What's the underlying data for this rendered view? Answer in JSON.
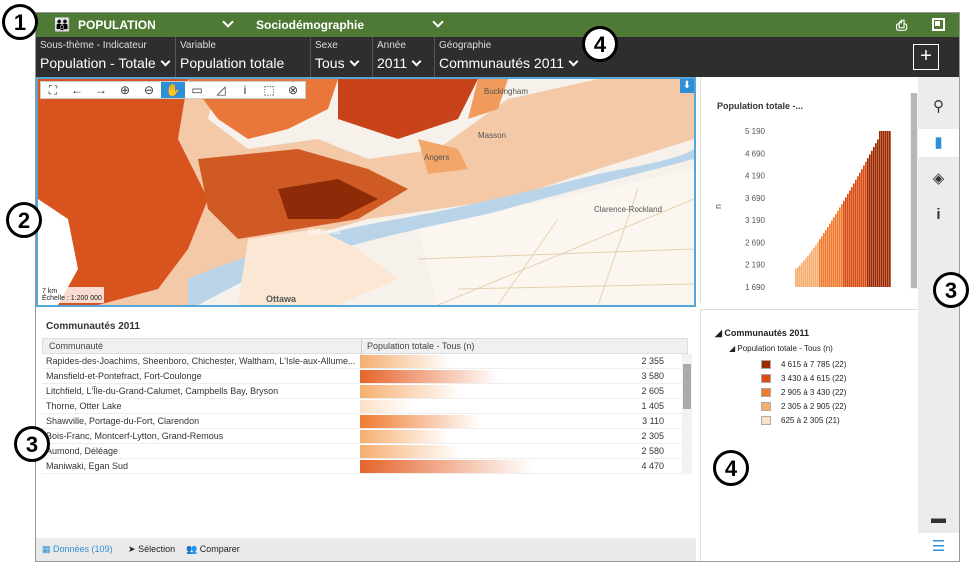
{
  "topbar": {
    "theme_label": "POPULATION",
    "sub_label": "Sociodémographie"
  },
  "filters": [
    {
      "label": "Sous-thème - Indicateur",
      "value": "Population - Totale"
    },
    {
      "label": "Variable",
      "value": "Population totale"
    },
    {
      "label": "Sexe",
      "value": "Tous"
    },
    {
      "label": "Année",
      "value": "2011"
    },
    {
      "label": "Géographie",
      "value": "Communautés 2011"
    }
  ],
  "map": {
    "scale_km": "7 km",
    "scale_ratio": "Échelle : 1:200 000",
    "labels": [
      "Ottawa",
      "Gatineau",
      "Clarence-Rockland",
      "Buckingham",
      "Masson",
      "Angers"
    ]
  },
  "table": {
    "title": "Communautés 2011",
    "col_community": "Communauté",
    "col_value": "Population totale - Tous (n)",
    "rows": [
      {
        "name": "Rapides-des-Joachims, Sheenboro, Chichester, Waltham, L'Isle-aux-Allume...",
        "value": "2 355",
        "num": 2355
      },
      {
        "name": "Mansfield-et-Pontefract, Fort-Coulonge",
        "value": "3 580",
        "num": 3580
      },
      {
        "name": "Litchfield, L'Île-du-Grand-Calumet, Campbells Bay, Bryson",
        "value": "2 605",
        "num": 2605
      },
      {
        "name": "Thorne, Otter Lake",
        "value": "1 405",
        "num": 1405
      },
      {
        "name": "Shawville, Portage-du-Fort, Clarendon",
        "value": "3 110",
        "num": 3110
      },
      {
        "name": "Bois-Franc, Montcerf-Lytton, Grand-Remous",
        "value": "2 305",
        "num": 2305
      },
      {
        "name": "Aumond, Déléage",
        "value": "2 580",
        "num": 2580
      },
      {
        "name": "Maniwaki, Egan Sud",
        "value": "4 470",
        "num": 4470
      }
    ]
  },
  "tabs": {
    "data_label": "Données (109)",
    "selection_label": "Sélection",
    "compare_label": "Comparer"
  },
  "chart_data": {
    "type": "bar",
    "title": "Population totale -...",
    "ylabel": "n",
    "yticks": [
      "5 190",
      "4 690",
      "4 190",
      "3 690",
      "3 190",
      "2 690",
      "2 190",
      "1 690"
    ],
    "ylim": [
      1690,
      5190
    ]
  },
  "legend": {
    "title": "Communautés 2011",
    "subtitle": "Population totale - Tous (n)",
    "items": [
      {
        "label": "4 615 à 7 785 (22)",
        "color": "#9c2a00"
      },
      {
        "label": "3 430 à 4 615 (22)",
        "color": "#d84a0f"
      },
      {
        "label": "2 905 à 3 430 (22)",
        "color": "#f07b2f"
      },
      {
        "label": "2 305 à 2 905 (22)",
        "color": "#f6ae6f"
      },
      {
        "label": "625 à 2 305 (21)",
        "color": "#fde0c6"
      }
    ]
  },
  "callouts": [
    "1",
    "2",
    "3",
    "3",
    "4",
    "4"
  ]
}
